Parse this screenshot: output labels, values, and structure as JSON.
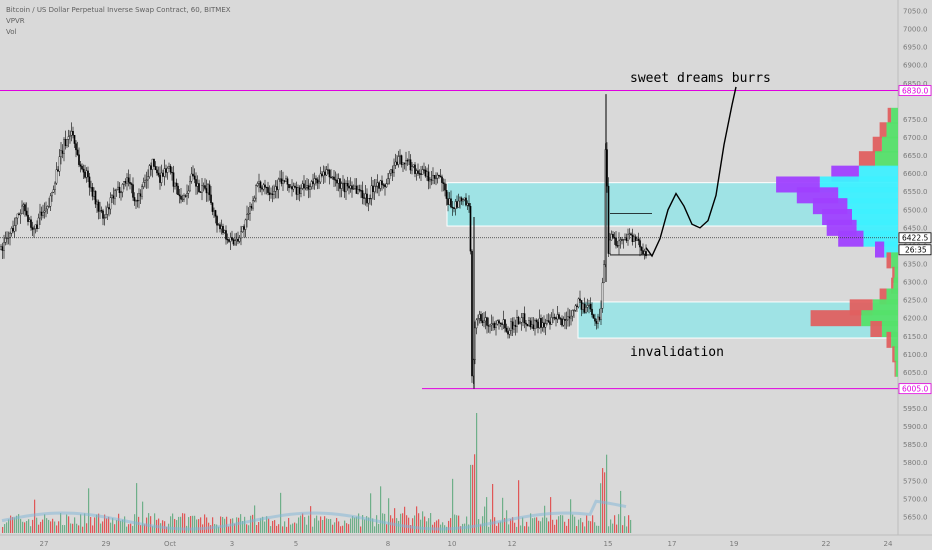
{
  "legend": {
    "symbol_line": "Bitcoin / US Dollar Perpetual Inverse Swap Contract, 60, BITMEX",
    "indicator_1": "VPVR",
    "indicator_2": "Vol"
  },
  "annotations": {
    "top_text": "sweet dreams burrs",
    "bottom_text": "invalidation"
  },
  "price_tags": {
    "upper_line": "6830.0",
    "lower_line": "6005.0",
    "last_price": "6422.5",
    "countdown": "26:35"
  },
  "colors": {
    "background": "#d9d9d9",
    "horizontal_lines": "#e000e0",
    "zone_fill": "#9fe3e5",
    "candles": "#000000",
    "vol_up": "#5aa77a",
    "vol_down": "#e04040",
    "vpvr_up": "#55e06a",
    "vpvr_down": "#e06060",
    "vpvr_up_va": "#3ff0ff",
    "vpvr_down_va": "#a040ff"
  },
  "chart_data": {
    "type": "candlestick",
    "title": "Bitcoin / US Dollar Perpetual Inverse Swap Contract, 60, BITMEX",
    "ylim": [
      5600,
      7075
    ],
    "y_ticks": [
      "7050.0",
      "7000.0",
      "6950.0",
      "6900.0",
      "6850.0",
      "6750.0",
      "6700.0",
      "6650.0",
      "6600.0",
      "6550.0",
      "6500.0",
      "6450.0",
      "6400.0",
      "6350.0",
      "6300.0",
      "6250.0",
      "6200.0",
      "6150.0",
      "6100.0",
      "6050.0",
      "6000.0",
      "5950.0",
      "5900.0",
      "5850.0",
      "5800.0",
      "5750.0",
      "5700.0",
      "5650.0"
    ],
    "x_ticks": [
      "27",
      "29",
      "Oct",
      "3",
      "5",
      "8",
      "10",
      "12",
      "15",
      "17",
      "19",
      "22",
      "24"
    ],
    "horizontal_lines": [
      6830.0,
      6005.0
    ],
    "last_price": 6422.5,
    "zones": [
      {
        "from": 6455,
        "to": 6575
      },
      {
        "from": 6145,
        "to": 6245
      }
    ],
    "price_path": [
      [
        0,
        6390
      ],
      [
        8,
        6420
      ],
      [
        16,
        6470
      ],
      [
        24,
        6520
      ],
      [
        32,
        6430
      ],
      [
        40,
        6480
      ],
      [
        48,
        6500
      ],
      [
        56,
        6600
      ],
      [
        64,
        6680
      ],
      [
        72,
        6720
      ],
      [
        80,
        6620
      ],
      [
        88,
        6590
      ],
      [
        96,
        6520
      ],
      [
        104,
        6470
      ],
      [
        112,
        6530
      ],
      [
        120,
        6560
      ],
      [
        128,
        6590
      ],
      [
        136,
        6520
      ],
      [
        144,
        6570
      ],
      [
        152,
        6630
      ],
      [
        160,
        6590
      ],
      [
        168,
        6620
      ],
      [
        176,
        6560
      ],
      [
        184,
        6530
      ],
      [
        192,
        6590
      ],
      [
        200,
        6550
      ],
      [
        208,
        6560
      ],
      [
        216,
        6470
      ],
      [
        224,
        6440
      ],
      [
        232,
        6410
      ],
      [
        240,
        6430
      ],
      [
        248,
        6480
      ],
      [
        256,
        6560
      ],
      [
        264,
        6570
      ],
      [
        272,
        6550
      ],
      [
        280,
        6580
      ],
      [
        288,
        6570
      ],
      [
        296,
        6550
      ],
      [
        304,
        6560
      ],
      [
        312,
        6570
      ],
      [
        320,
        6590
      ],
      [
        328,
        6600
      ],
      [
        336,
        6580
      ],
      [
        344,
        6560
      ],
      [
        352,
        6570
      ],
      [
        360,
        6550
      ],
      [
        368,
        6530
      ],
      [
        376,
        6580
      ],
      [
        384,
        6560
      ],
      [
        392,
        6610
      ],
      [
        400,
        6640
      ],
      [
        408,
        6630
      ],
      [
        416,
        6610
      ],
      [
        424,
        6600
      ],
      [
        432,
        6580
      ],
      [
        440,
        6590
      ],
      [
        448,
        6520
      ],
      [
        456,
        6510
      ],
      [
        464,
        6530
      ],
      [
        470,
        6490
      ],
      [
        472,
        6030
      ],
      [
        476,
        6210
      ],
      [
        484,
        6190
      ],
      [
        492,
        6180
      ],
      [
        500,
        6200
      ],
      [
        508,
        6170
      ],
      [
        516,
        6190
      ],
      [
        524,
        6200
      ],
      [
        532,
        6180
      ],
      [
        540,
        6190
      ],
      [
        548,
        6180
      ],
      [
        556,
        6200
      ],
      [
        564,
        6190
      ],
      [
        572,
        6220
      ],
      [
        578,
        6250
      ],
      [
        584,
        6220
      ],
      [
        590,
        6240
      ],
      [
        596,
        6190
      ],
      [
        600,
        6200
      ],
      [
        604,
        6350
      ],
      [
        606,
        6770
      ],
      [
        608,
        6380
      ],
      [
        612,
        6450
      ],
      [
        616,
        6400
      ],
      [
        620,
        6420
      ],
      [
        624,
        6410
      ],
      [
        628,
        6440
      ],
      [
        632,
        6420
      ],
      [
        640,
        6400
      ],
      [
        646,
        6385
      ]
    ],
    "projection": [
      [
        646,
        6395
      ],
      [
        652,
        6372
      ],
      [
        660,
        6420
      ],
      [
        668,
        6500
      ],
      [
        676,
        6545
      ],
      [
        684,
        6510
      ],
      [
        692,
        6460
      ],
      [
        700,
        6450
      ],
      [
        708,
        6470
      ],
      [
        716,
        6540
      ],
      [
        724,
        6680
      ],
      [
        732,
        6790
      ],
      [
        736,
        6840
      ]
    ],
    "vpvr_rows": [
      {
        "price": 6760,
        "up": 6,
        "down": 3
      },
      {
        "price": 6720,
        "up": 10,
        "down": 6
      },
      {
        "price": 6680,
        "up": 14,
        "down": 8
      },
      {
        "price": 6640,
        "up": 20,
        "down": 14
      },
      {
        "price": 6600,
        "up": 34,
        "down": 24
      },
      {
        "price": 6570,
        "up": 68,
        "down": 38
      },
      {
        "price": 6540,
        "up": 52,
        "down": 36
      },
      {
        "price": 6510,
        "up": 44,
        "down": 30
      },
      {
        "price": 6480,
        "up": 40,
        "down": 26
      },
      {
        "price": 6450,
        "up": 36,
        "down": 26
      },
      {
        "price": 6420,
        "up": 30,
        "down": 22
      },
      {
        "price": 6390,
        "up": 12,
        "down": 8
      },
      {
        "price": 6360,
        "up": 6,
        "down": 4
      },
      {
        "price": 6320,
        "up": 3,
        "down": 2
      },
      {
        "price": 6290,
        "up": 4,
        "down": 2
      },
      {
        "price": 6260,
        "up": 10,
        "down": 6
      },
      {
        "price": 6230,
        "up": 22,
        "down": 20
      },
      {
        "price": 6200,
        "up": 32,
        "down": 44
      },
      {
        "price": 6170,
        "up": 14,
        "down": 10
      },
      {
        "price": 6140,
        "up": 6,
        "down": 4
      },
      {
        "price": 6100,
        "up": 3,
        "down": 2
      },
      {
        "price": 6060,
        "up": 2,
        "down": 1
      }
    ]
  }
}
